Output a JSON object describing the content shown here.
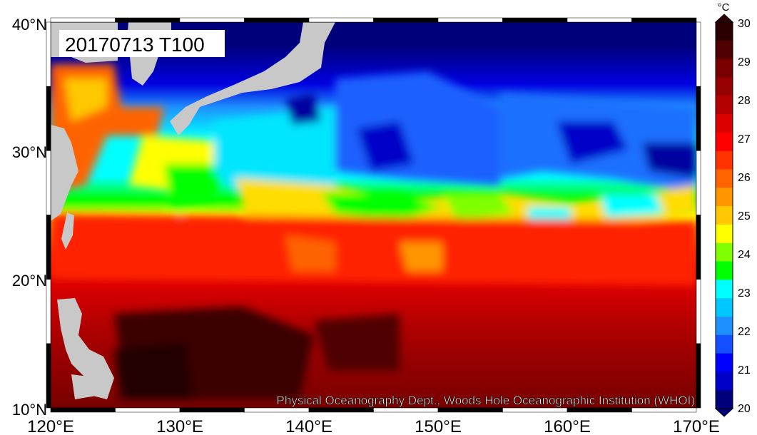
{
  "title_box": "20170713 T100",
  "credit": "Physical Oceanography Dept., Woods Hole Oceanographic Institution (WHOI)",
  "lat_labels": [
    "40°N",
    "30°N",
    "20°N",
    "10°N"
  ],
  "lon_labels": [
    "120°E",
    "130°E",
    "140°E",
    "150°E",
    "160°E",
    "170°E"
  ],
  "colorbar": {
    "unit": "°C",
    "ticks": [
      "30",
      "29",
      "28",
      "27",
      "26",
      "25",
      "24",
      "23",
      "22",
      "21",
      "20"
    ]
  },
  "colors": {
    "land": "#c8c8c8",
    "scale": [
      "#00007a",
      "#0000c8",
      "#0000ff",
      "#1450ff",
      "#1e90ff",
      "#00c8ff",
      "#00ffff",
      "#00ff00",
      "#80ff00",
      "#ffff00",
      "#ffc800",
      "#ff9600",
      "#ff6400",
      "#ff3200",
      "#ff0000",
      "#dc0000",
      "#b40000",
      "#960000",
      "#780000",
      "#500000",
      "#2a0000"
    ]
  }
}
